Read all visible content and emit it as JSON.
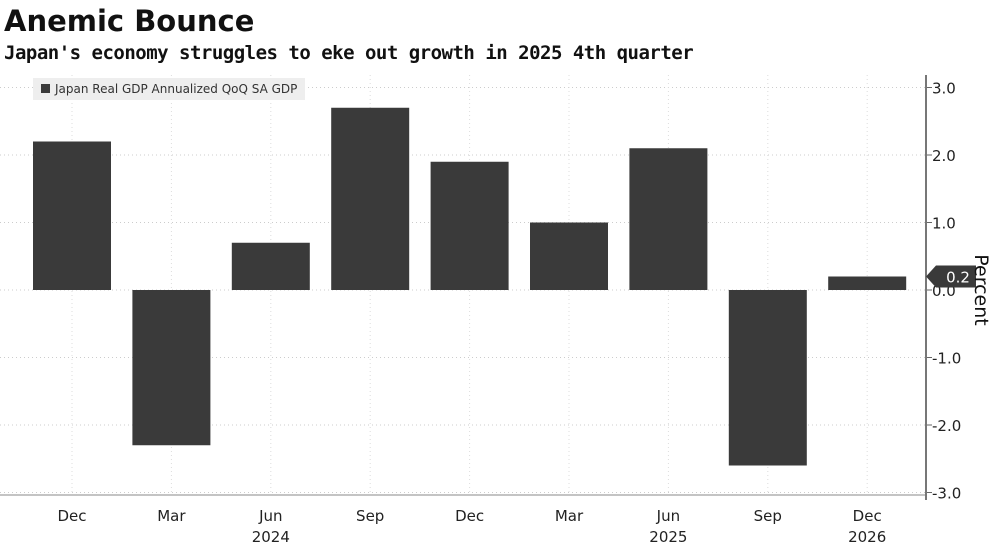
{
  "title": "Anemic Bounce",
  "subtitle": "Japan's economy struggles to eke out growth in 2025 4th quarter",
  "chart_data": {
    "type": "bar",
    "title": "Anemic Bounce",
    "legend": [
      "Japan Real GDP Annualized QoQ SA GDP"
    ],
    "categories": [
      "Dec",
      "Mar",
      "Jun",
      "Sep",
      "Dec",
      "Mar",
      "Jun",
      "Sep",
      "Dec"
    ],
    "year_labels": [
      {
        "index": 2,
        "label": "2024"
      },
      {
        "index": 6,
        "label": "2025"
      },
      {
        "index": 8,
        "label": "2026"
      }
    ],
    "values": [
      2.2,
      -2.3,
      0.7,
      2.7,
      1.9,
      1.0,
      2.1,
      -2.6,
      0.2
    ],
    "ylabel": "Percent",
    "ylim": [
      -3.2,
      3.2
    ],
    "yticks": [
      "3.0",
      "2.0",
      "1.0",
      "0.0",
      "-1.0",
      "-2.0",
      "-3.0"
    ],
    "last_value_label": "0.2",
    "color": "#3a3a3a"
  }
}
